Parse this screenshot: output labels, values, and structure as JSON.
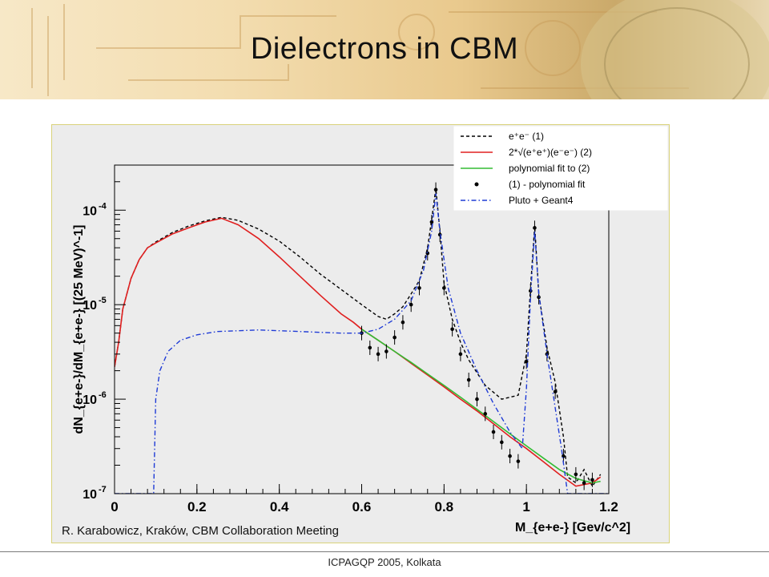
{
  "slide": {
    "title": "Dielectrons in CBM",
    "footer": "ICPAGQP 2005, Kolkata",
    "credit": "R. Karabowicz, Kraków, CBM Collaboration Meeting",
    "banner_colors": [
      "#f7e8c7",
      "#e9c98d",
      "#caa96a"
    ]
  },
  "chart_data": {
    "type": "line",
    "title": "",
    "xlabel": "M_{e+e-} [Gev/c^2]",
    "ylabel": "dN_{e+e-}/dM_{e+e-} [(25 MeV)^-1]",
    "xlim": [
      0,
      1.2
    ],
    "ylim": [
      1e-07,
      0.0003
    ],
    "yscale": "log",
    "x_ticks": [
      "0",
      "0.2",
      "0.4",
      "0.6",
      "0.8",
      "1",
      "1.2"
    ],
    "y_ticks": [
      {
        "value": 0.0001,
        "mantissa": "10",
        "exp": "-4"
      },
      {
        "value": 1e-05,
        "mantissa": "10",
        "exp": "-5"
      },
      {
        "value": 1e-06,
        "mantissa": "10",
        "exp": "-6"
      },
      {
        "value": 1e-07,
        "mantissa": "10",
        "exp": "-7"
      }
    ],
    "grid": false,
    "legend_position": "top-right",
    "legend": [
      {
        "label": "e⁺e⁻ (1)",
        "style": "dash",
        "color": "#000000"
      },
      {
        "label": "2*√(e⁺e⁺)(e⁻e⁻) (2)",
        "style": "solid",
        "color": "#e02020"
      },
      {
        "label": "polynomial fit to (2)",
        "style": "solid",
        "color": "#33bb33"
      },
      {
        "label": "(1) - polynomial fit",
        "style": "marker",
        "color": "#000000"
      },
      {
        "label": "Pluto + Geant4",
        "style": "dashdot",
        "color": "#1f3bd6"
      }
    ],
    "series": [
      {
        "name": "e+e- (1)",
        "color": "#000000",
        "style": "dash",
        "x": [
          0.0,
          0.01,
          0.02,
          0.04,
          0.06,
          0.08,
          0.1,
          0.14,
          0.18,
          0.22,
          0.26,
          0.3,
          0.35,
          0.4,
          0.45,
          0.5,
          0.55,
          0.6,
          0.64,
          0.66,
          0.68,
          0.7,
          0.72,
          0.74,
          0.76,
          0.77,
          0.78,
          0.79,
          0.8,
          0.82,
          0.84,
          0.86,
          0.88,
          0.9,
          0.94,
          0.98,
          1.0,
          1.01,
          1.02,
          1.03,
          1.05,
          1.07,
          1.09,
          1.1,
          1.12,
          1.14,
          1.16,
          1.18
        ],
        "y": [
          2.2e-06,
          4e-06,
          9e-06,
          1.9e-05,
          3e-05,
          4e-05,
          4.6e-05,
          5.8e-05,
          6.8e-05,
          7.7e-05,
          8.4e-05,
          7.8e-05,
          6.3e-05,
          4.7e-05,
          3.2e-05,
          2.1e-05,
          1.45e-05,
          1e-05,
          7.5e-06,
          7e-06,
          8e-06,
          9.5e-06,
          1.3e-05,
          1.8e-05,
          4e-05,
          8e-05,
          0.00017,
          6e-05,
          1.7e-05,
          7e-06,
          4e-06,
          2.6e-06,
          1.9e-06,
          1.4e-06,
          1e-06,
          1.1e-06,
          3e-06,
          1.5e-05,
          6.8e-05,
          1.3e-05,
          3.5e-06,
          1.5e-06,
          4e-07,
          1.5e-07,
          1.3e-07,
          1.8e-07,
          1.2e-07,
          1.6e-07
        ]
      },
      {
        "name": "2*sqrt(e+e+)(e-e-) (2)",
        "color": "#e02020",
        "style": "solid",
        "x": [
          0.0,
          0.01,
          0.02,
          0.04,
          0.06,
          0.08,
          0.1,
          0.14,
          0.18,
          0.22,
          0.26,
          0.3,
          0.35,
          0.4,
          0.45,
          0.5,
          0.55,
          0.58,
          0.6,
          0.64,
          0.68,
          0.72,
          0.76,
          0.8,
          0.84,
          0.88,
          0.92,
          0.96,
          1.0,
          1.04,
          1.08,
          1.12,
          1.16,
          1.18
        ],
        "y": [
          2.2e-06,
          4e-06,
          9e-06,
          1.9e-05,
          3e-05,
          4e-05,
          4.5e-05,
          5.6e-05,
          6.5e-05,
          7.5e-05,
          8.2e-05,
          7e-05,
          5e-05,
          3.2e-05,
          2e-05,
          1.25e-05,
          8e-06,
          6.5e-06,
          5.5e-06,
          4.2e-06,
          3.2e-06,
          2.4e-06,
          1.8e-06,
          1.35e-06,
          1e-06,
          7.5e-07,
          5.5e-07,
          4e-07,
          3e-07,
          2.2e-07,
          1.6e-07,
          1.2e-07,
          1.3e-07,
          1.5e-07
        ]
      },
      {
        "name": "polynomial fit to (2)",
        "color": "#33bb33",
        "style": "solid",
        "x": [
          0.6,
          0.64,
          0.68,
          0.72,
          0.76,
          0.8,
          0.84,
          0.88,
          0.92,
          0.96,
          1.0,
          1.04,
          1.08,
          1.12,
          1.16,
          1.18
        ],
        "y": [
          5.5e-06,
          4.2e-06,
          3.2e-06,
          2.45e-06,
          1.85e-06,
          1.4e-06,
          1.05e-06,
          7.8e-07,
          5.8e-07,
          4.3e-07,
          3.2e-07,
          2.4e-07,
          1.8e-07,
          1.45e-07,
          1.3e-07,
          1.35e-07
        ]
      },
      {
        "name": "(1) - polynomial fit",
        "color": "#000000",
        "style": "marker",
        "x": [
          0.6,
          0.62,
          0.64,
          0.66,
          0.68,
          0.7,
          0.72,
          0.74,
          0.76,
          0.77,
          0.78,
          0.79,
          0.8,
          0.82,
          0.84,
          0.86,
          0.88,
          0.9,
          0.92,
          0.94,
          0.96,
          0.98,
          1.0,
          1.01,
          1.02,
          1.03,
          1.05,
          1.07,
          1.09,
          1.12,
          1.14,
          1.16
        ],
        "y": [
          5e-06,
          3.5e-06,
          3e-06,
          3.2e-06,
          4.5e-06,
          6.5e-06,
          1e-05,
          1.5e-05,
          3.5e-05,
          7.5e-05,
          0.000165,
          5.5e-05,
          1.5e-05,
          5.5e-06,
          3e-06,
          1.6e-06,
          1e-06,
          7e-07,
          4.5e-07,
          3.5e-07,
          2.5e-07,
          2.2e-07,
          2.5e-06,
          1.4e-05,
          6.5e-05,
          1.2e-05,
          3e-06,
          1.2e-06,
          2.5e-07,
          1.6e-07,
          1.3e-07,
          1.4e-07
        ]
      },
      {
        "name": "Pluto + Geant4",
        "color": "#1f3bd6",
        "style": "dashdot",
        "x": [
          0.0,
          0.085,
          0.095,
          0.1,
          0.11,
          0.13,
          0.16,
          0.2,
          0.25,
          0.3,
          0.35,
          0.4,
          0.45,
          0.5,
          0.55,
          0.6,
          0.64,
          0.68,
          0.72,
          0.75,
          0.77,
          0.78,
          0.79,
          0.81,
          0.84,
          0.88,
          0.92,
          0.96,
          0.99,
          1.0,
          1.01,
          1.02,
          1.03,
          1.05,
          1.07,
          1.085,
          1.1,
          1.2
        ],
        "y": [
          1e-07,
          1e-07,
          1e-07,
          1e-06,
          2e-06,
          3.2e-06,
          4.2e-06,
          4.8e-06,
          5.2e-06,
          5.3e-06,
          5.4e-06,
          5.3e-06,
          5.2e-06,
          5.1e-06,
          5e-06,
          5e-06,
          5.5e-06,
          7e-06,
          1.1e-05,
          2.3e-05,
          6e-05,
          0.00015,
          6e-05,
          1.5e-05,
          5e-06,
          2e-06,
          9e-07,
          4.5e-07,
          3e-07,
          1.3e-06,
          1.2e-05,
          6e-05,
          1.3e-05,
          3e-06,
          8e-07,
          3e-07,
          1e-07,
          1e-07
        ]
      }
    ]
  }
}
